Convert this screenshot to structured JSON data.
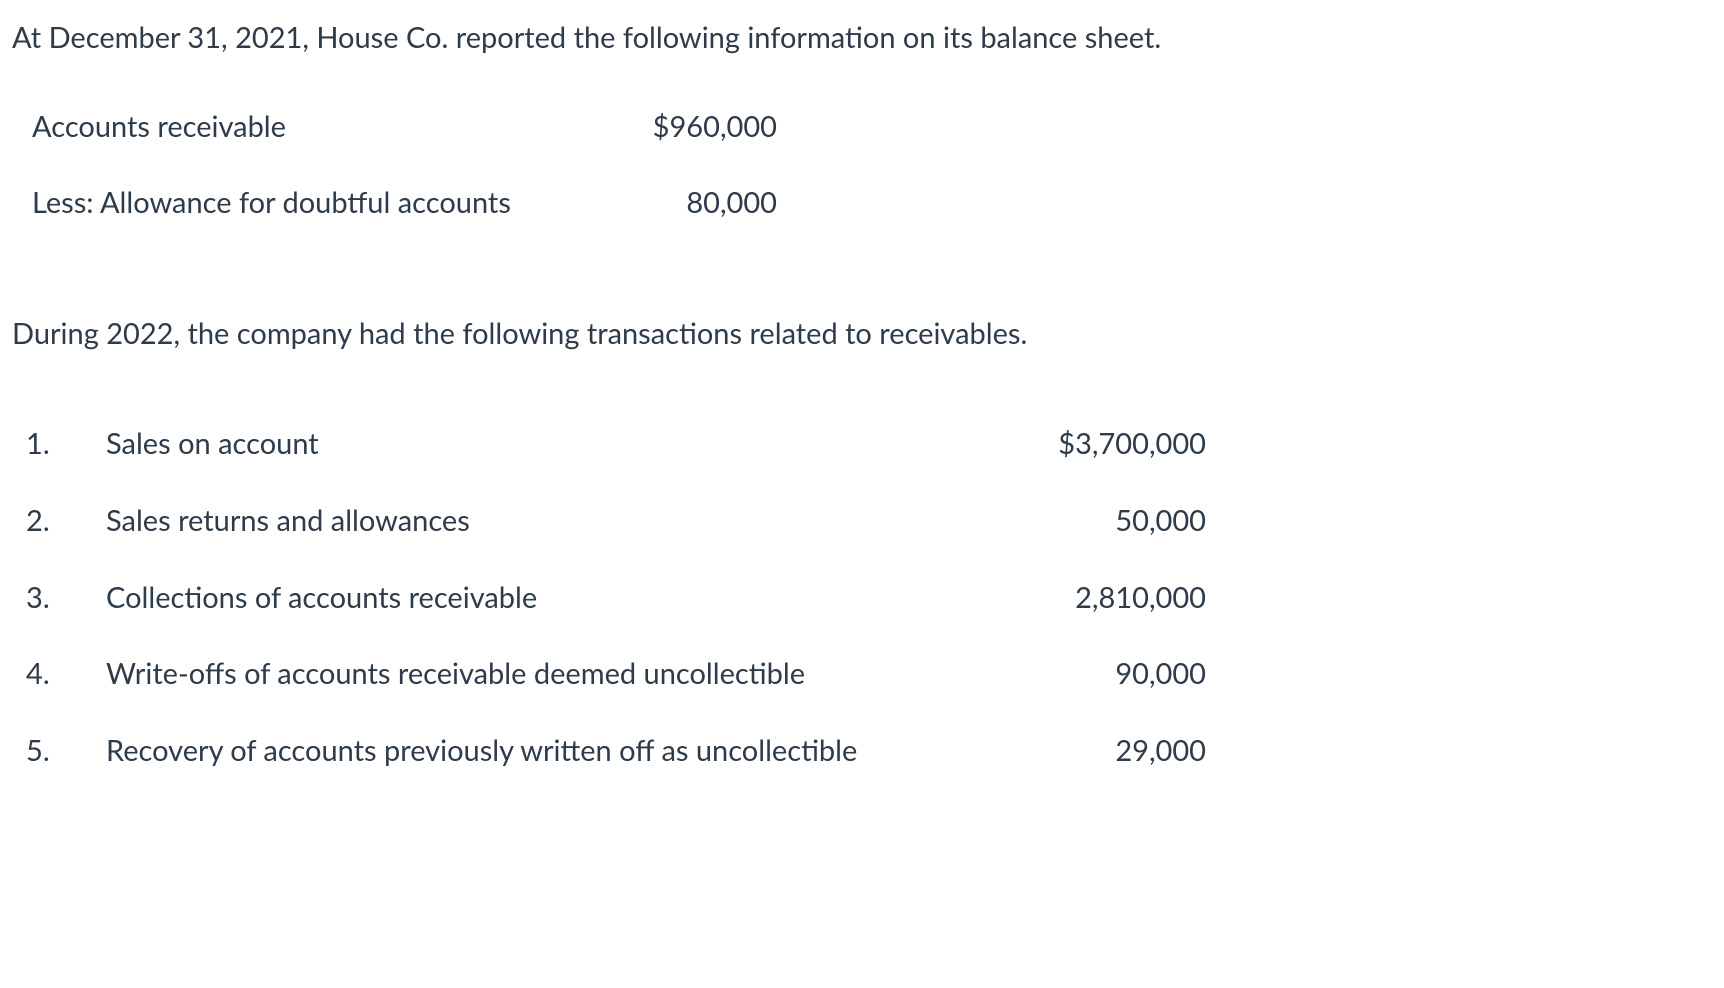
{
  "intro": "At December 31, 2021, House Co. reported the following information on its balance sheet.",
  "balanceSheet": {
    "rows": [
      {
        "label": "Accounts receivable",
        "value": "$960,000"
      },
      {
        "label": "Less: Allowance for doubtful accounts",
        "value": "80,000"
      }
    ]
  },
  "transactionsIntro": "During 2022, the company had the following transactions related to receivables.",
  "transactions": {
    "rows": [
      {
        "num": "1.",
        "label": "Sales on account",
        "value": "$3,700,000"
      },
      {
        "num": "2.",
        "label": "Sales returns and allowances",
        "value": "50,000"
      },
      {
        "num": "3.",
        "label": "Collections of accounts receivable",
        "value": "2,810,000"
      },
      {
        "num": "4.",
        "label": "Write-offs of accounts receivable deemed uncollectible",
        "value": "90,000"
      },
      {
        "num": "5.",
        "label": "Recovery of accounts previously written off as uncollectible",
        "value": "29,000"
      }
    ]
  },
  "style": {
    "text_color": "#2e3b4a",
    "background_color": "#ffffff",
    "font_family": "Segoe UI, Lato, sans-serif",
    "base_font_size": 29
  }
}
